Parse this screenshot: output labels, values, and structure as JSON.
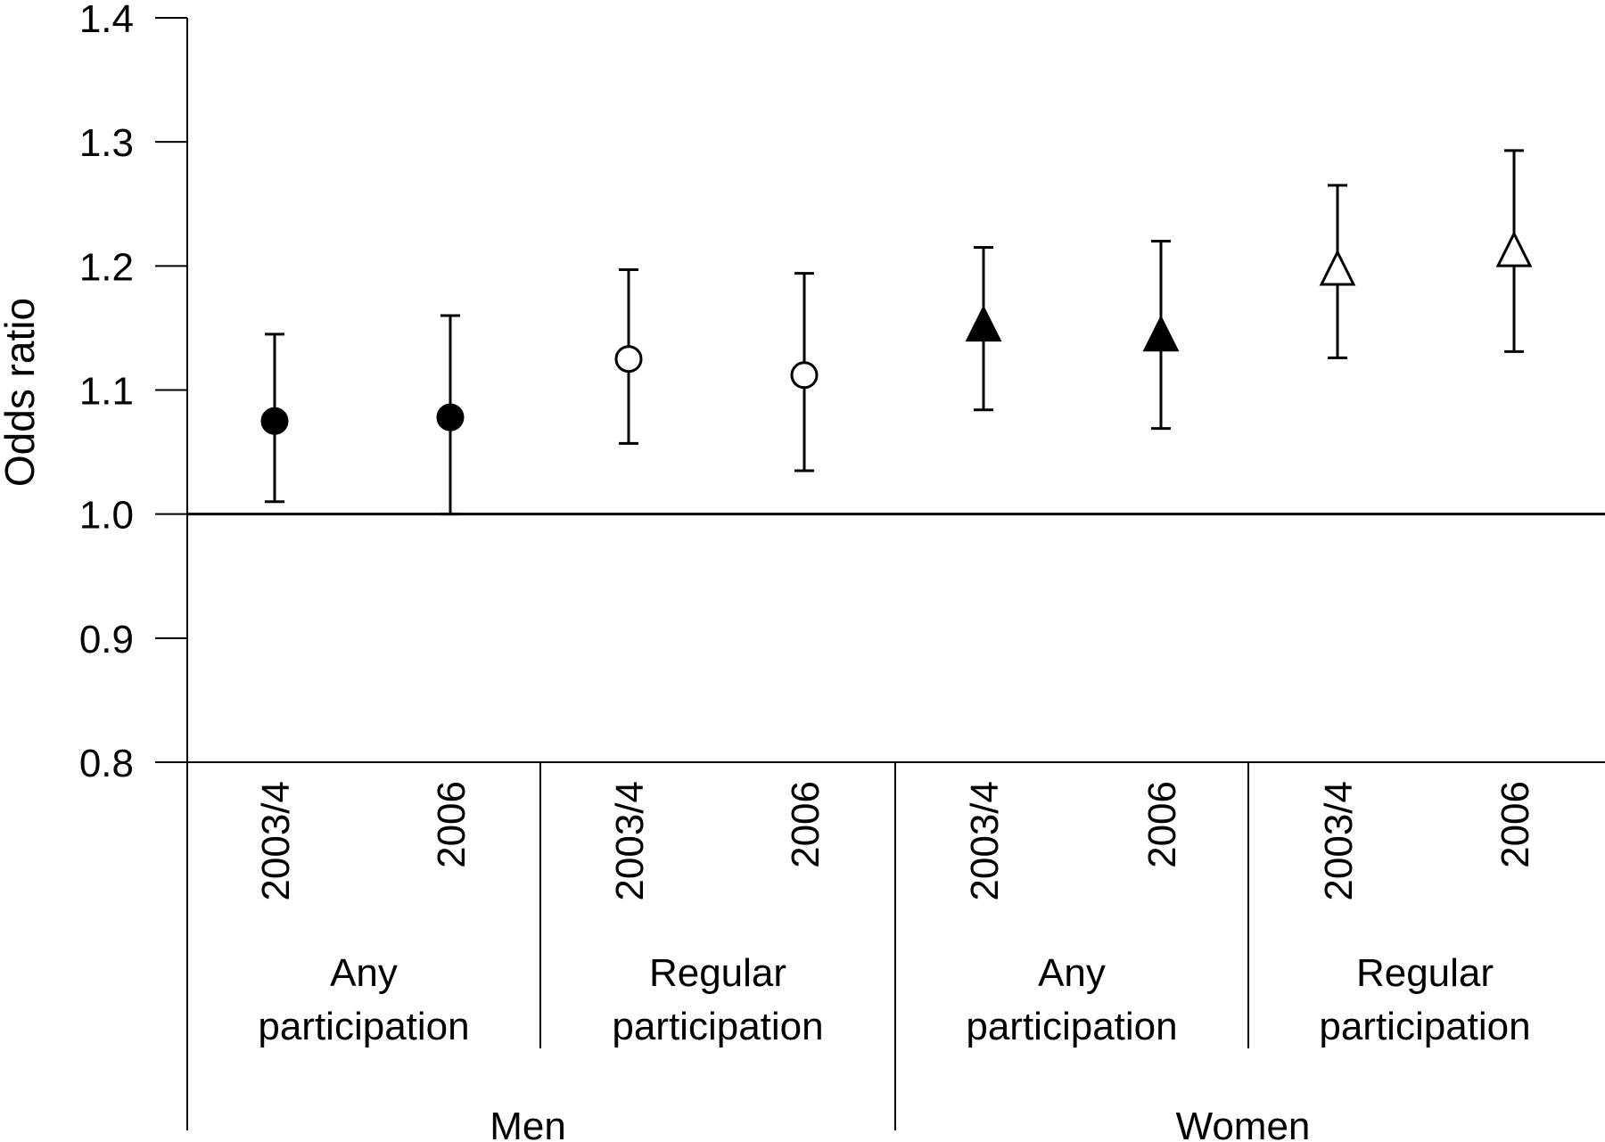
{
  "chart_data": {
    "type": "scatter",
    "title": "",
    "ylabel": "Odds ratio",
    "xlabel": "",
    "ylim": [
      0.8,
      1.4
    ],
    "yticks": [
      "0.8",
      "0.9",
      "1.0",
      "1.1",
      "1.2",
      "1.3",
      "1.4"
    ],
    "reference_line": 1.0,
    "grid": false,
    "categories": [
      "2003/4",
      "2006",
      "2003/4",
      "2006",
      "2003/4",
      "2006",
      "2003/4",
      "2006"
    ],
    "groups": [
      {
        "label": "Any participation",
        "sex": "Men"
      },
      {
        "label": "Regular participation",
        "sex": "Men"
      },
      {
        "label": "Any participation",
        "sex": "Women"
      },
      {
        "label": "Regular participation",
        "sex": "Women"
      }
    ],
    "sexes": [
      "Men",
      "Women"
    ],
    "points": [
      {
        "or": 1.075,
        "lower": 1.01,
        "upper": 1.145,
        "marker": "circle",
        "fill": "#000000"
      },
      {
        "or": 1.078,
        "lower": 1.0,
        "upper": 1.16,
        "marker": "circle",
        "fill": "#000000"
      },
      {
        "or": 1.125,
        "lower": 1.057,
        "upper": 1.197,
        "marker": "circle",
        "fill": "#ffffff"
      },
      {
        "or": 1.112,
        "lower": 1.035,
        "upper": 1.194,
        "marker": "circle",
        "fill": "#ffffff"
      },
      {
        "or": 1.15,
        "lower": 1.084,
        "upper": 1.215,
        "marker": "triangle",
        "fill": "#000000"
      },
      {
        "or": 1.142,
        "lower": 1.069,
        "upper": 1.22,
        "marker": "triangle",
        "fill": "#000000"
      },
      {
        "or": 1.195,
        "lower": 1.126,
        "upper": 1.265,
        "marker": "triangle",
        "fill": "#ffffff"
      },
      {
        "or": 1.21,
        "lower": 1.131,
        "upper": 1.293,
        "marker": "triangle",
        "fill": "#ffffff"
      }
    ]
  }
}
